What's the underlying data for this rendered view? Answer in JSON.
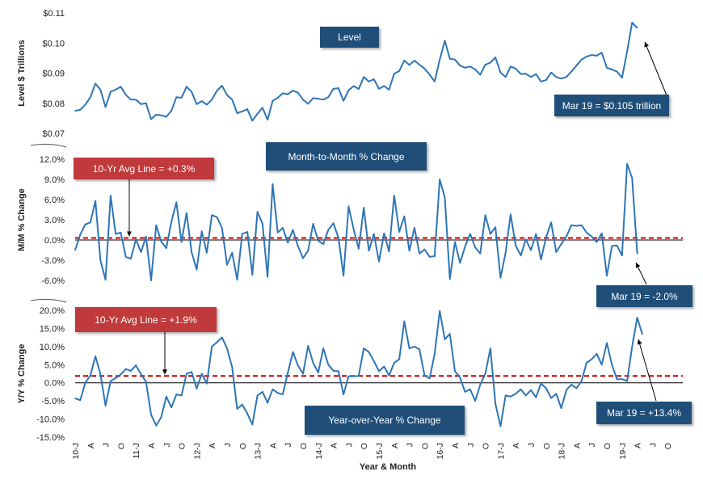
{
  "colors": {
    "line": "#2e75b6",
    "avg_line": "#c00000",
    "zero_line": "#000000",
    "label_blue": "#1f4e79",
    "label_red": "#c0393b"
  },
  "x_axis": {
    "title": "Year & Month",
    "tick_labels": [
      "10-J",
      "A",
      "J",
      "O",
      "11-J",
      "A",
      "J",
      "O",
      "12-J",
      "A",
      "J",
      "O",
      "13-J",
      "A",
      "J",
      "O",
      "14-J",
      "A",
      "J",
      "O",
      "15-J",
      "A",
      "J",
      "O",
      "16-J",
      "A",
      "J",
      "O",
      "17-J",
      "A",
      "J",
      "O",
      "18-J",
      "A",
      "J",
      "O",
      "19-J",
      "A",
      "J",
      "O"
    ]
  },
  "chart_data": [
    {
      "type": "line",
      "title": "Level",
      "ylabel": "Level $ Trillions",
      "ylim": [
        0.07,
        0.11
      ],
      "yticks": [
        "$0.07",
        "$0.08",
        "$0.09",
        "$0.10",
        "$0.11"
      ],
      "annotation": "Mar 19 = $0.105 trillion",
      "series": [
        {
          "values": [
            0.0775,
            0.0778,
            0.0795,
            0.082,
            0.0865,
            0.0845,
            0.0787,
            0.0838,
            0.0845,
            0.0855,
            0.0828,
            0.0812,
            0.0812,
            0.0797,
            0.08,
            0.0747,
            0.0762,
            0.076,
            0.0755,
            0.0775,
            0.082,
            0.0818,
            0.0855,
            0.0838,
            0.0797,
            0.0807,
            0.0795,
            0.0812,
            0.0842,
            0.0858,
            0.0827,
            0.0812,
            0.0767,
            0.0773,
            0.078,
            0.0742,
            0.0765,
            0.0785,
            0.0745,
            0.0808,
            0.0818,
            0.0833,
            0.083,
            0.0842,
            0.0835,
            0.0812,
            0.0798,
            0.0817,
            0.0815,
            0.0812,
            0.082,
            0.0848,
            0.085,
            0.0808,
            0.0843,
            0.0857,
            0.0847,
            0.0887,
            0.0872,
            0.088,
            0.0848,
            0.0857,
            0.0845,
            0.0898,
            0.0907,
            0.0942,
            0.0927,
            0.0942,
            0.0928,
            0.0915,
            0.0895,
            0.0872,
            0.0945,
            0.1008,
            0.0948,
            0.0945,
            0.0925,
            0.0918,
            0.0922,
            0.0912,
            0.0895,
            0.0928,
            0.0935,
            0.0952,
            0.0902,
            0.0887,
            0.0922,
            0.0915,
            0.0897,
            0.0898,
            0.0887,
            0.0897,
            0.0872,
            0.0877,
            0.0902,
            0.0887,
            0.0882,
            0.0887,
            0.0905,
            0.0925,
            0.0945,
            0.0955,
            0.096,
            0.0958,
            0.0968,
            0.0918,
            0.0912,
            0.0905,
            0.0885,
            0.0972,
            0.1068,
            0.105
          ]
        }
      ]
    },
    {
      "type": "line",
      "title": "Month-to-Month % Change",
      "ylabel": "M/M % Change",
      "ylim": [
        -6.0,
        12.0
      ],
      "yticks": [
        "-6.0%",
        "-3.0%",
        "0.0%",
        "3.0%",
        "6.0%",
        "9.0%",
        "12.0%"
      ],
      "reference_line": {
        "label": "10-Yr Avg Line = +0.3%",
        "value": 0.3
      },
      "annotation": "Mar 19 = -2.0%",
      "series": [
        {
          "values": [
            -1.5,
            0.8,
            2.3,
            2.6,
            5.8,
            -3.0,
            -5.9,
            6.6,
            0.9,
            1.1,
            -2.5,
            -2.8,
            0.1,
            -1.8,
            0.5,
            -6.0,
            2.2,
            -0.2,
            -1.2,
            2.7,
            5.6,
            -0.3,
            4.0,
            -1.8,
            -4.4,
            1.3,
            -1.9,
            3.7,
            3.4,
            1.8,
            -3.7,
            -1.9,
            -5.9,
            0.9,
            1.2,
            -5.2,
            4.2,
            2.4,
            -5.5,
            8.3,
            1.1,
            1.8,
            -0.4,
            1.5,
            -0.9,
            -2.7,
            -1.6,
            2.4,
            -0.1,
            -0.6,
            1.5,
            2.5,
            0.3,
            -5.3,
            5.0,
            1.6,
            -1.3,
            4.8,
            -1.6,
            0.9,
            -3.2,
            1.0,
            -1.7,
            6.6,
            1.2,
            3.5,
            -1.6,
            1.8,
            -2.0,
            -1.4,
            -2.5,
            -2.4,
            9.0,
            6.3,
            -5.8,
            -0.3,
            -3.4,
            -1.0,
            0.9,
            -1.1,
            -2.0,
            3.7,
            0.9,
            1.9,
            -5.6,
            -1.9,
            3.8,
            -0.8,
            -2.3,
            0.1,
            -1.5,
            0.9,
            -2.9,
            0.4,
            2.6,
            -1.8,
            -0.6,
            0.5,
            2.2,
            2.1,
            2.2,
            1.1,
            0.5,
            -0.3,
            1.0,
            -5.3,
            -0.9,
            -0.8,
            -2.3,
            11.3,
            9.2,
            -2.0
          ]
        }
      ]
    },
    {
      "type": "line",
      "title": "Year-over-Year % Change",
      "ylabel": "Y/Y % Change",
      "ylim": [
        -15.0,
        20.0
      ],
      "yticks": [
        "-15.0%",
        "-10.0%",
        "-5.0%",
        "0.0%",
        "5.0%",
        "10.0%",
        "15.0%",
        "20.0%"
      ],
      "reference_line": {
        "label": "10-Yr Avg Line = +1.9%",
        "value": 1.9
      },
      "annotation": "Mar 19 = +13.4%",
      "series": [
        {
          "values": [
            -4.3,
            -4.8,
            0.0,
            2.0,
            7.3,
            2.4,
            -6.3,
            0.5,
            1.3,
            2.3,
            3.8,
            3.3,
            4.8,
            2.4,
            0.3,
            -8.8,
            -11.8,
            -9.5,
            -3.8,
            -6.8,
            -3.2,
            -3.5,
            2.5,
            3.0,
            -1.6,
            2.5,
            -0.2,
            10.0,
            11.2,
            12.5,
            9.5,
            4.3,
            -7.2,
            -6.0,
            -8.5,
            -11.5,
            -3.5,
            -2.5,
            -5.5,
            -1.8,
            -2.8,
            -3.2,
            2.8,
            8.5,
            4.8,
            2.5,
            10.2,
            5.5,
            2.8,
            9.5,
            5.0,
            3.3,
            3.2,
            -3.2,
            1.8,
            1.8,
            1.9,
            9.5,
            8.5,
            6.0,
            3.2,
            4.5,
            2.0,
            5.5,
            6.5,
            17.0,
            9.5,
            10.0,
            9.2,
            2.0,
            1.2,
            8.0,
            19.8,
            12.0,
            13.5,
            3.2,
            1.5,
            -2.5,
            -1.8,
            -5.0,
            -0.5,
            2.5,
            9.5,
            -5.8,
            -12.0,
            -3.5,
            -3.8,
            -3.0,
            -1.8,
            -3.5,
            -2.0,
            -4.0,
            -0.2,
            -1.5,
            -4.2,
            -3.0,
            -7.0,
            -2.0,
            -0.5,
            -1.5,
            0.5,
            5.5,
            6.5,
            8.0,
            5.0,
            11.0,
            5.0,
            1.0,
            1.0,
            0.5,
            10.0,
            18.0,
            13.4
          ]
        }
      ]
    }
  ]
}
